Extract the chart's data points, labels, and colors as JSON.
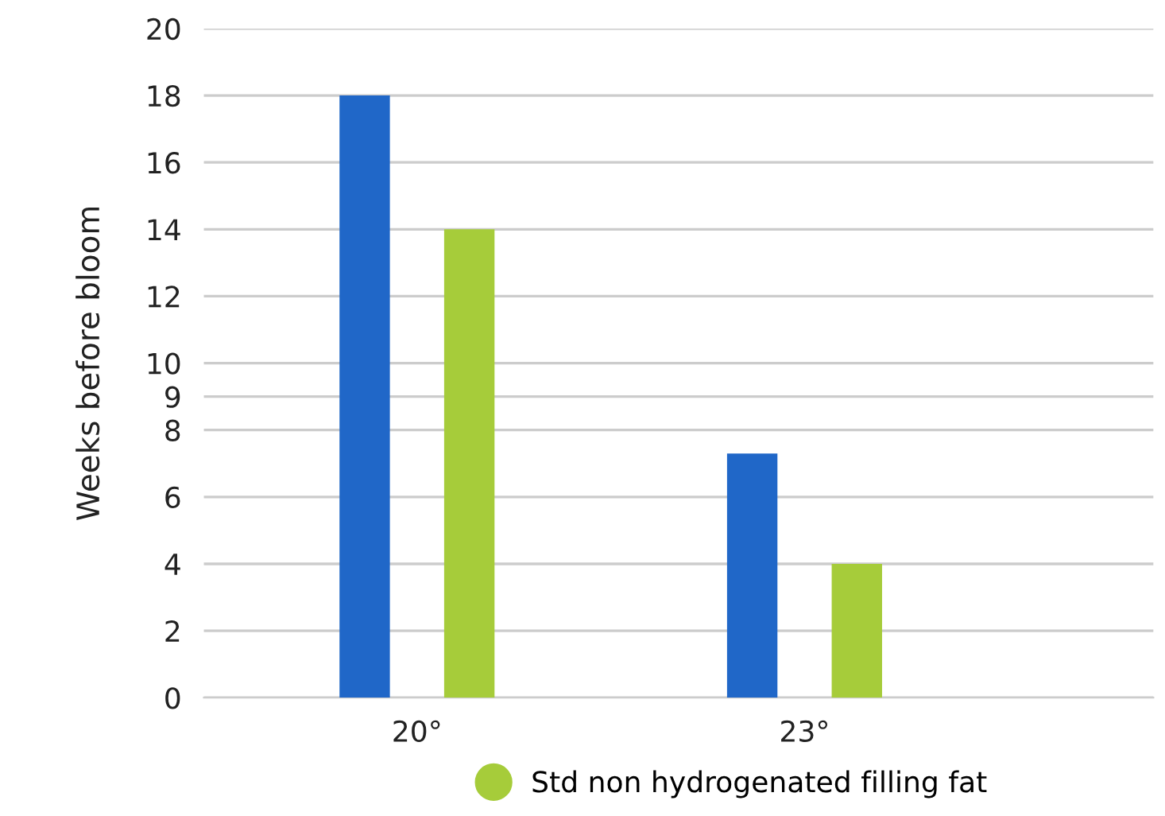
{
  "chart_data": {
    "type": "bar",
    "ylabel": "Weeks before bloom",
    "categories": [
      "20°",
      "23°"
    ],
    "series": [
      {
        "color": "#2067c8",
        "values": [
          18,
          7.3
        ]
      },
      {
        "name": "Std non hydrogenated filling fat",
        "color": "#a6cc3a",
        "values": [
          14,
          4
        ]
      }
    ],
    "ylim": [
      0,
      20
    ],
    "yticks": [
      0,
      2,
      4,
      6,
      8,
      9,
      10,
      12,
      14,
      16,
      18,
      20
    ],
    "grid": "y",
    "legend": "bottom"
  }
}
